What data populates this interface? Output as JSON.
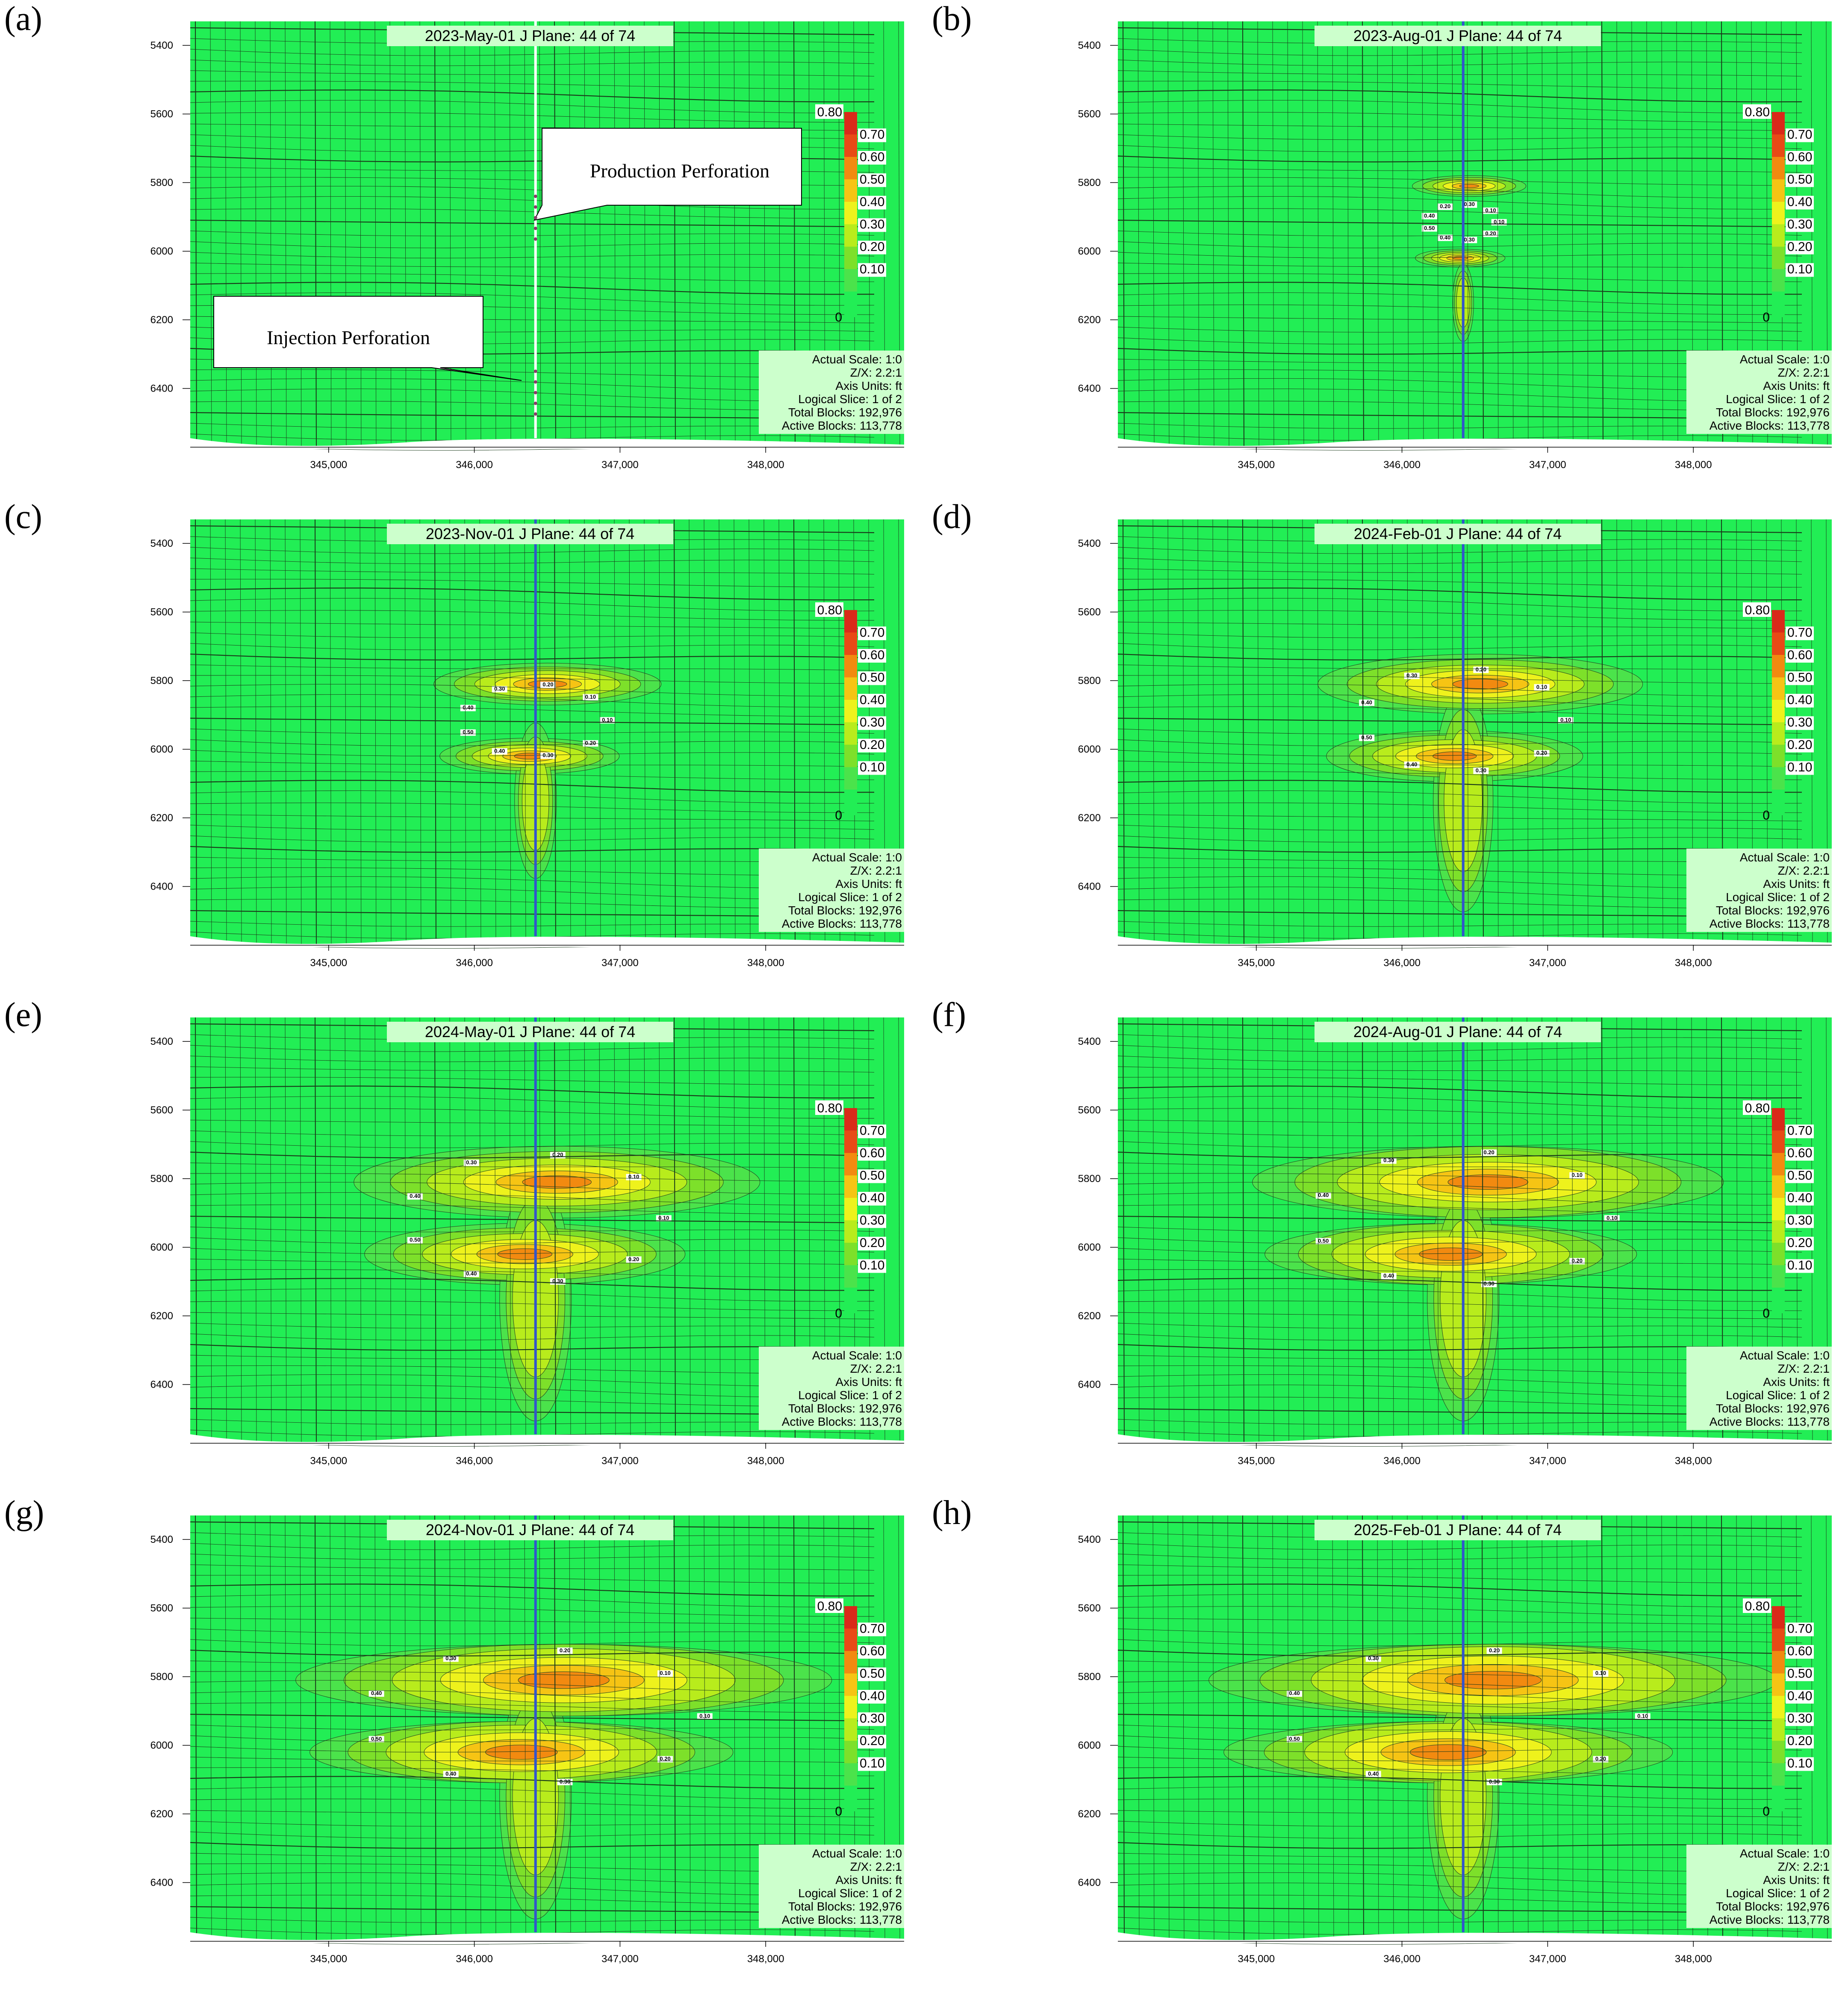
{
  "figure": {
    "panels": [
      {
        "label": "(a)",
        "date": "2023-May-01",
        "plane": "J Plane: 44 of 74",
        "plume": 0,
        "callouts": true
      },
      {
        "label": "(b)",
        "date": "2023-Aug-01",
        "plane": "J Plane: 44 of 74",
        "plume": 1,
        "callouts": false
      },
      {
        "label": "(c)",
        "date": "2023-Nov-01",
        "plane": "J Plane: 44 of 74",
        "plume": 2,
        "callouts": false
      },
      {
        "label": "(d)",
        "date": "2024-Feb-01",
        "plane": "J Plane: 44 of 74",
        "plume": 3,
        "callouts": false
      },
      {
        "label": "(e)",
        "date": "2024-May-01",
        "plane": "J Plane: 44 of 74",
        "plume": 4,
        "callouts": false
      },
      {
        "label": "(f)",
        "date": "2024-Aug-01",
        "plane": "J Plane: 44 of 74",
        "plume": 5,
        "callouts": false
      },
      {
        "label": "(g)",
        "date": "2024-Nov-01",
        "plane": "J Plane: 44 of 74",
        "plume": 6,
        "callouts": false
      },
      {
        "label": "(h)",
        "date": "2025-Feb-01",
        "plane": "J Plane: 44 of 74",
        "plume": 7,
        "callouts": false
      }
    ],
    "info_box": [
      "Actual Scale: 1:0",
      "Z/X: 2.2:1",
      "Axis Units: ft",
      "Logical Slice: 1 of 2",
      "Total Blocks: 192,976",
      "Active Blocks: 113,778"
    ],
    "callouts": {
      "production": "Production Perforation",
      "injection": "Injection     Perforation"
    },
    "colors": {
      "background": "#22ee55",
      "grid": "#1a3a1a",
      "well": "#3355cc",
      "scale": [
        "#4be34b",
        "#7de02a",
        "#b8ec1c",
        "#eef21c",
        "#f6c414",
        "#f28a10",
        "#e84a16",
        "#d92a1a"
      ]
    }
  },
  "chart_data": [
    {
      "type": "heatmap",
      "title": "2023-May-01   J Plane: 44 of 74",
      "xlabel": "",
      "ylabel": "",
      "xlim": [
        344050,
        348950
      ],
      "ylim": [
        6570,
        5330
      ],
      "x_ticks": [
        "345,000",
        "346,000",
        "347,000",
        "348,000"
      ],
      "y_ticks": [
        "5400",
        "5600",
        "5800",
        "6000",
        "6200",
        "6400"
      ],
      "colorbar": {
        "min": "0",
        "max": "0.80",
        "ticks": [
          "0.10",
          "0.20",
          "0.30",
          "0.40",
          "0.50",
          "0.60",
          "0.70"
        ]
      },
      "contour_labels": []
    },
    {
      "type": "heatmap",
      "title": "2023-Aug-01   J Plane: 44 of 74",
      "xlabel": "",
      "ylabel": "",
      "xlim": [
        344050,
        348950
      ],
      "ylim": [
        6570,
        5330
      ],
      "x_ticks": [
        "345,000",
        "346,000",
        "347,000",
        "348,000"
      ],
      "y_ticks": [
        "5400",
        "5600",
        "5800",
        "6000",
        "6200",
        "6400"
      ],
      "colorbar": {
        "min": "0",
        "max": "0.80",
        "ticks": [
          "0.10",
          "0.20",
          "0.30",
          "0.40",
          "0.50",
          "0.60",
          "0.70"
        ]
      },
      "contour_labels": [
        "0.10",
        "0.20",
        "0.30",
        "0.40",
        "0.50",
        "0.40",
        "0.20",
        "0.30",
        "0.10"
      ]
    },
    {
      "type": "heatmap",
      "title": "2023-Nov-01   J Plane: 44 of 74",
      "xlabel": "",
      "ylabel": "",
      "xlim": [
        344050,
        348950
      ],
      "ylim": [
        6570,
        5330
      ],
      "x_ticks": [
        "345,000",
        "346,000",
        "347,000",
        "348,000"
      ],
      "y_ticks": [
        "5400",
        "5600",
        "5800",
        "6000",
        "6200",
        "6400"
      ],
      "colorbar": {
        "min": "0",
        "max": "0.80",
        "ticks": [
          "0.10",
          "0.20",
          "0.30",
          "0.40",
          "0.50",
          "0.60",
          "0.70"
        ]
      },
      "contour_labels": [
        "0.10",
        "0.20",
        "0.30",
        "0.40",
        "0.50",
        "0.40",
        "0.30",
        "0.20",
        "0.10"
      ]
    },
    {
      "type": "heatmap",
      "title": "2024-Feb-01   J Plane: 44 of 74",
      "xlabel": "",
      "ylabel": "",
      "xlim": [
        344050,
        348950
      ],
      "ylim": [
        6570,
        5330
      ],
      "x_ticks": [
        "345,000",
        "346,000",
        "347,000",
        "348,000"
      ],
      "y_ticks": [
        "5400",
        "5600",
        "5800",
        "6000",
        "6200",
        "6400"
      ],
      "colorbar": {
        "min": "0",
        "max": "0.80",
        "ticks": [
          "0.10",
          "0.20",
          "0.30",
          "0.40",
          "0.50",
          "0.60",
          "0.70"
        ]
      },
      "contour_labels": [
        "0.10",
        "0.20",
        "0.30",
        "0.40",
        "0.50",
        "0.40",
        "0.30",
        "0.20",
        "0.10"
      ]
    },
    {
      "type": "heatmap",
      "title": "2024-May-01   J Plane: 44 of 74",
      "xlabel": "",
      "ylabel": "",
      "xlim": [
        344050,
        348950
      ],
      "ylim": [
        6570,
        5330
      ],
      "x_ticks": [
        "345,000",
        "346,000",
        "347,000",
        "348,000"
      ],
      "y_ticks": [
        "5400",
        "5600",
        "5800",
        "6000",
        "6200",
        "6400"
      ],
      "colorbar": {
        "min": "0",
        "max": "0.80",
        "ticks": [
          "0.10",
          "0.20",
          "0.30",
          "0.40",
          "0.50",
          "0.60",
          "0.70"
        ]
      },
      "contour_labels": [
        "0.10",
        "0.20",
        "0.30",
        "0.40",
        "0.50",
        "0.40",
        "0.30",
        "0.20",
        "0.10"
      ]
    },
    {
      "type": "heatmap",
      "title": "2024-Aug-01   J Plane: 44 of 74",
      "xlabel": "",
      "ylabel": "",
      "xlim": [
        344050,
        348950
      ],
      "ylim": [
        6570,
        5330
      ],
      "x_ticks": [
        "345,000",
        "346,000",
        "347,000",
        "348,000"
      ],
      "y_ticks": [
        "5400",
        "5600",
        "5800",
        "6000",
        "6200",
        "6400"
      ],
      "colorbar": {
        "min": "0",
        "max": "0.80",
        "ticks": [
          "0.10",
          "0.20",
          "0.30",
          "0.40",
          "0.50",
          "0.60",
          "0.70"
        ]
      },
      "contour_labels": [
        "0.10",
        "0.20",
        "0.30",
        "0.40",
        "0.50",
        "0.40",
        "0.30",
        "0.20",
        "0.10"
      ]
    },
    {
      "type": "heatmap",
      "title": "2024-Nov-01   J Plane: 44 of 74",
      "xlabel": "",
      "ylabel": "",
      "xlim": [
        344050,
        348950
      ],
      "ylim": [
        6570,
        5330
      ],
      "x_ticks": [
        "345,000",
        "346,000",
        "347,000",
        "348,000"
      ],
      "y_ticks": [
        "5400",
        "5600",
        "5800",
        "6000",
        "6200",
        "6400"
      ],
      "colorbar": {
        "min": "0",
        "max": "0.80",
        "ticks": [
          "0.10",
          "0.20",
          "0.30",
          "0.40",
          "0.50",
          "0.60",
          "0.70"
        ]
      },
      "contour_labels": [
        "0.10",
        "0.20",
        "0.30",
        "0.40",
        "0.50",
        "0.40",
        "0.30",
        "0.20",
        "0.10"
      ]
    },
    {
      "type": "heatmap",
      "title": "2025-Feb-01   J Plane: 44 of 74",
      "xlabel": "",
      "ylabel": "",
      "xlim": [
        344050,
        348950
      ],
      "ylim": [
        6570,
        5330
      ],
      "x_ticks": [
        "345,000",
        "346,000",
        "347,000",
        "348,000"
      ],
      "y_ticks": [
        "5400",
        "5600",
        "5800",
        "6000",
        "6200",
        "6400"
      ],
      "colorbar": {
        "min": "0",
        "max": "0.80",
        "ticks": [
          "0.10",
          "0.20",
          "0.30",
          "0.40",
          "0.50",
          "0.60",
          "0.70"
        ]
      },
      "contour_labels": [
        "0.10",
        "0.20",
        "0.30",
        "0.40",
        "0.50",
        "0.40",
        "0.30",
        "0.20",
        "0.10"
      ]
    }
  ]
}
